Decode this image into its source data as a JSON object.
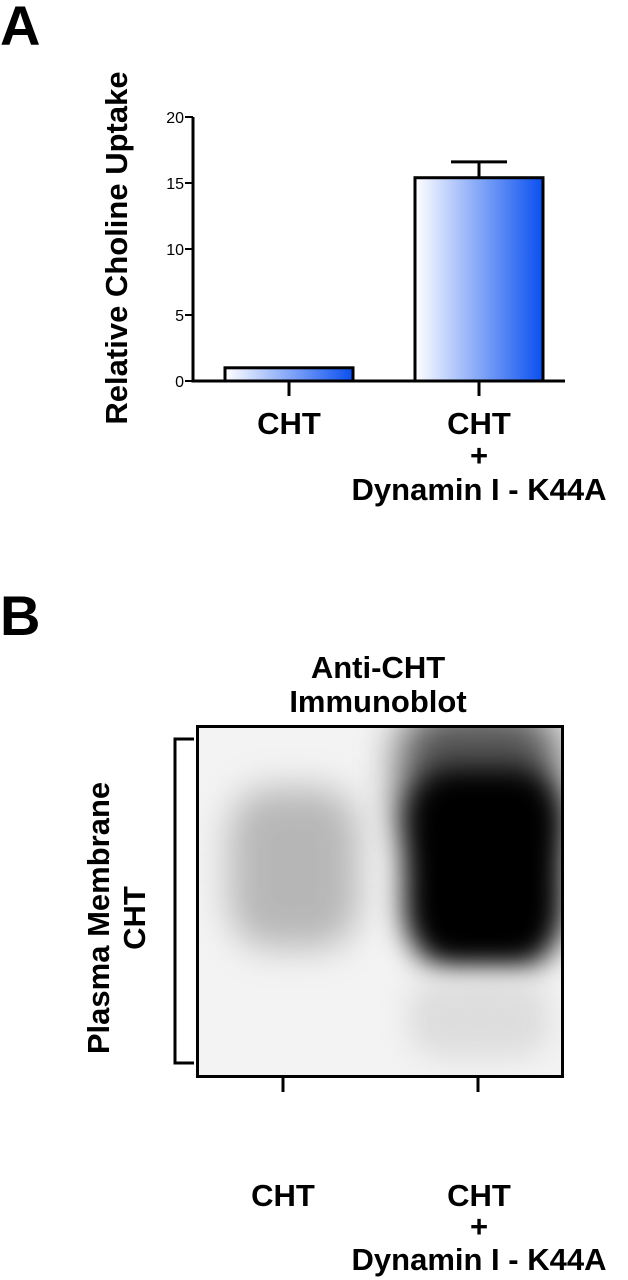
{
  "panel_a_label": "A",
  "panel_b_label": "B",
  "chart_data": {
    "type": "bar",
    "ylabel": "Relative Choline Uptake",
    "ylim": [
      0,
      20
    ],
    "yticks": [
      0,
      5,
      10,
      15,
      20
    ],
    "categories": [
      {
        "line1": "CHT",
        "line2": "",
        "line3": ""
      },
      {
        "line1": "CHT",
        "line2": "+",
        "line3": "Dynamin I - K44A"
      }
    ],
    "values": [
      1.0,
      15.4
    ],
    "errors": [
      0,
      1.2
    ],
    "grid": false,
    "bar_fill_gradient": [
      "#ffffff",
      "#0a4ff0"
    ]
  },
  "blot": {
    "title_line1": "Anti-CHT",
    "title_line2": "Immunoblot",
    "side_label_line1": "Plasma Membrane",
    "side_label_line2": "CHT",
    "lanes": [
      {
        "line1": "CHT",
        "line2": "",
        "line3": ""
      },
      {
        "line1": "CHT",
        "line2": "+",
        "line3": "Dynamin I - K44A"
      }
    ]
  }
}
